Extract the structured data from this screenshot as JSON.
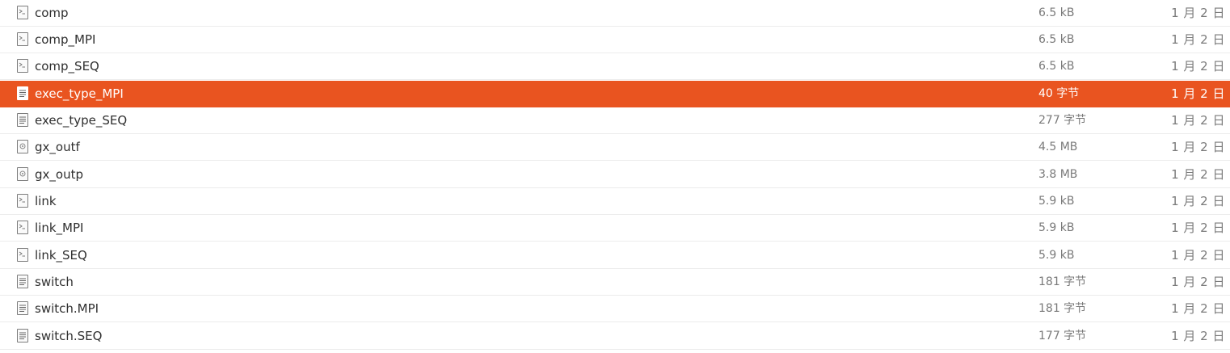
{
  "files": [
    {
      "name": "comp",
      "size": "6.5 kB",
      "date": "1 月 2 日",
      "icon": "executable-icon"
    },
    {
      "name": "comp_MPI",
      "size": "6.5 kB",
      "date": "1 月 2 日",
      "icon": "executable-icon"
    },
    {
      "name": "comp_SEQ",
      "size": "6.5 kB",
      "date": "1 月 2 日",
      "icon": "executable-icon"
    },
    {
      "name": "exec_type_MPI",
      "size": "40 字节",
      "date": "1 月 2 日",
      "icon": "text-file-icon",
      "selected": true
    },
    {
      "name": "exec_type_SEQ",
      "size": "277 字节",
      "date": "1 月 2 日",
      "icon": "text-file-icon"
    },
    {
      "name": "gx_outf",
      "size": "4.5 MB",
      "date": "1 月 2 日",
      "icon": "binary-file-icon"
    },
    {
      "name": "gx_outp",
      "size": "3.8 MB",
      "date": "1 月 2 日",
      "icon": "binary-file-icon"
    },
    {
      "name": "link",
      "size": "5.9 kB",
      "date": "1 月 2 日",
      "icon": "executable-icon"
    },
    {
      "name": "link_MPI",
      "size": "5.9 kB",
      "date": "1 月 2 日",
      "icon": "executable-icon"
    },
    {
      "name": "link_SEQ",
      "size": "5.9 kB",
      "date": "1 月 2 日",
      "icon": "executable-icon"
    },
    {
      "name": "switch",
      "size": "181 字节",
      "date": "1 月 2 日",
      "icon": "text-file-icon"
    },
    {
      "name": "switch.MPI",
      "size": "181 字节",
      "date": "1 月 2 日",
      "icon": "text-file-icon"
    },
    {
      "name": "switch.SEQ",
      "size": "177 字节",
      "date": "1 月 2 日",
      "icon": "text-file-icon"
    }
  ],
  "colors": {
    "selection": "#e95420",
    "text": "#2f2f2f",
    "muted": "#7a7a7a"
  }
}
